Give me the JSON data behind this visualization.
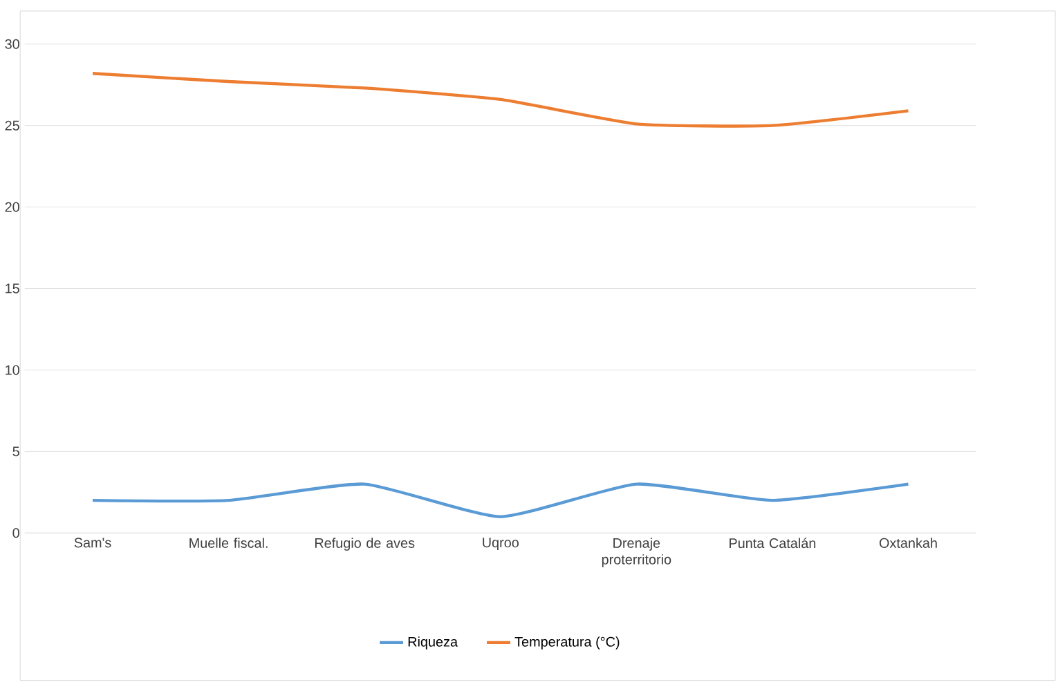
{
  "chart_data": {
    "type": "line",
    "categories": [
      "Sam's",
      "Muelle fiscal.",
      "Refugio de aves",
      "Uqroo",
      "Drenaje proterritorio",
      "Punta Catalán",
      "Oxtankah"
    ],
    "series": [
      {
        "name": "Riqueza",
        "color": "#5b9bd5",
        "values": [
          2,
          2,
          3,
          1,
          3,
          2,
          3
        ]
      },
      {
        "name": "Temperatura (°C)",
        "color": "#ed7d31",
        "values": [
          28.2,
          27.7,
          27.3,
          26.6,
          25.1,
          25.0,
          25.9
        ]
      }
    ],
    "ylim": [
      0,
      30
    ],
    "yticks": [
      0,
      5,
      10,
      15,
      20,
      25,
      30
    ],
    "grid": "y",
    "legend": "bottom",
    "marker": "none",
    "line_style": "solid"
  }
}
